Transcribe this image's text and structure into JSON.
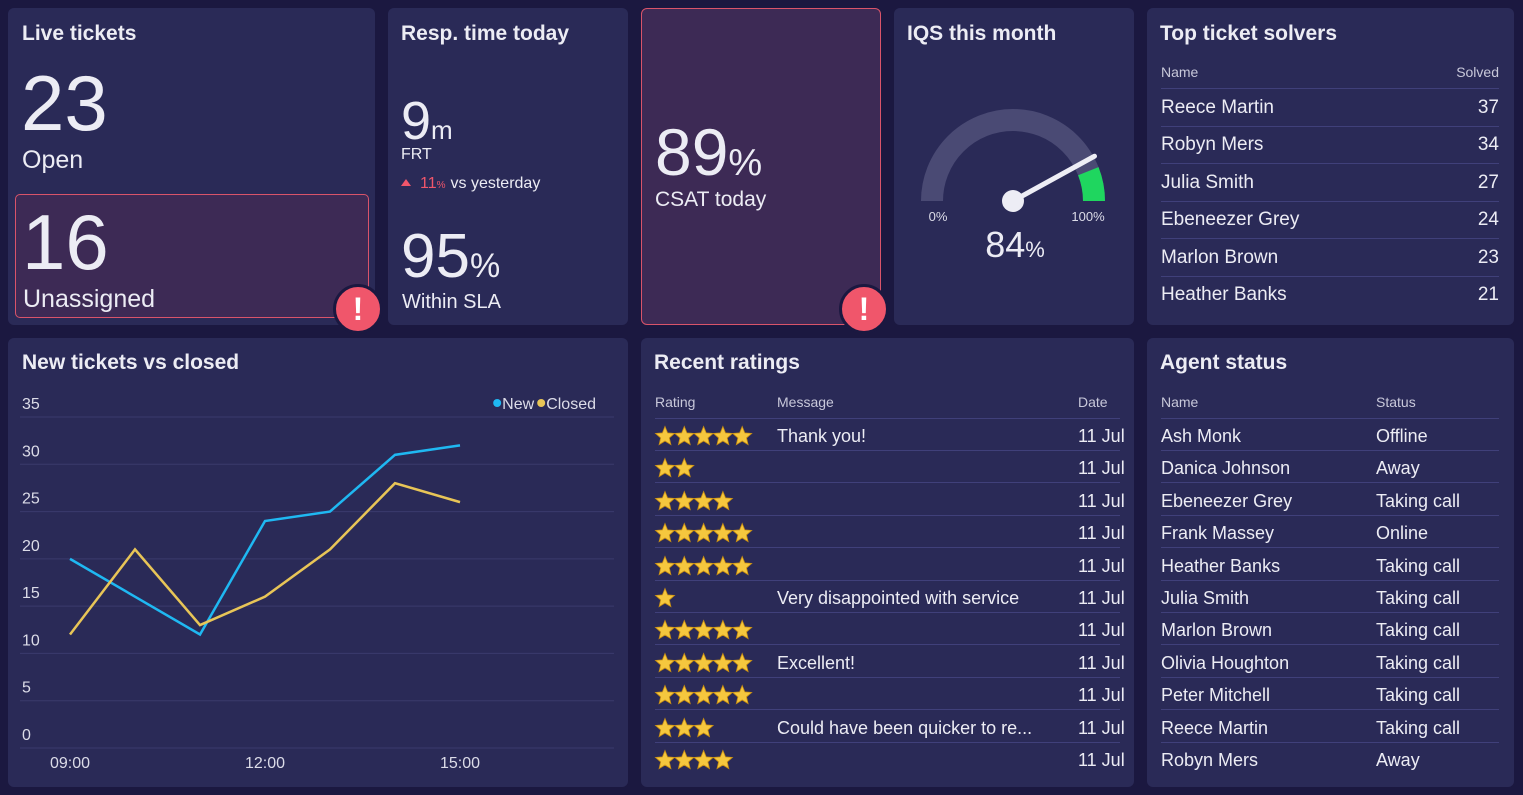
{
  "live_tickets": {
    "title": "Live tickets",
    "open": {
      "value": 23,
      "label": "Open"
    },
    "unassigned": {
      "value": 16,
      "label": "Unassigned"
    }
  },
  "response_time": {
    "title": "Resp. time today",
    "frt": {
      "value": 9,
      "unit": "m",
      "label": "FRT"
    },
    "change": {
      "value": 11,
      "unit": "%",
      "text": "vs yesterday"
    },
    "sla": {
      "value": 95,
      "unit": "%",
      "label": "Within SLA"
    }
  },
  "csat": {
    "value": 89,
    "unit": "%",
    "label": "CSAT today"
  },
  "solvers": {
    "title": "Top ticket solvers",
    "columns": [
      "Name",
      "Solved"
    ],
    "rows": [
      [
        "Reece Martin",
        37
      ],
      [
        "Robyn Mers",
        34
      ],
      [
        "Julia Smith",
        27
      ],
      [
        "Ebeneezer Grey",
        24
      ],
      [
        "Marlon Brown",
        23
      ],
      [
        "Heather Banks",
        21
      ]
    ]
  },
  "ratings": {
    "title": "Recent ratings",
    "columns": [
      "Rating",
      "Message",
      "Date"
    ],
    "rows": [
      [
        5,
        "Thank you!",
        "11 Jul"
      ],
      [
        2,
        null,
        "11 Jul"
      ],
      [
        4,
        null,
        "11 Jul"
      ],
      [
        5,
        null,
        "11 Jul"
      ],
      [
        5,
        null,
        "11 Jul"
      ],
      [
        1,
        "Very disappointed with service",
        "11 Jul"
      ],
      [
        5,
        null,
        "11 Jul"
      ],
      [
        5,
        "Excellent!",
        "11 Jul"
      ],
      [
        5,
        null,
        "11 Jul"
      ],
      [
        3,
        "Could have been quicker to re...",
        "11 Jul"
      ],
      [
        4,
        null,
        "11 Jul"
      ]
    ]
  },
  "agents": {
    "title": "Agent status",
    "columns": [
      "Name",
      "Status"
    ],
    "rows": [
      [
        "Ash Monk",
        "Offline"
      ],
      [
        "Danica Johnson",
        "Away"
      ],
      [
        "Ebeneezer Grey",
        "Taking call"
      ],
      [
        "Frank Massey",
        "Online"
      ],
      [
        "Heather Banks",
        "Taking call"
      ],
      [
        "Julia Smith",
        "Taking call"
      ],
      [
        "Marlon Brown",
        "Taking call"
      ],
      [
        "Olivia Houghton",
        "Taking call"
      ],
      [
        "Peter Mitchell",
        "Taking call"
      ],
      [
        "Reece Martin",
        "Taking call"
      ],
      [
        "Robyn Mers",
        "Away"
      ]
    ]
  },
  "chart_data": [
    {
      "type": "line",
      "title": "New tickets vs closed",
      "categories": [
        "09:00",
        null,
        null,
        "12:00",
        null,
        null,
        "15:00"
      ],
      "series": [
        {
          "name": "New",
          "color": "#1fb8f2",
          "values": [
            20,
            16,
            12,
            24,
            25,
            31,
            32
          ]
        },
        {
          "name": "Closed",
          "color": "#e8c557",
          "values": [
            12,
            21,
            13,
            16,
            21,
            28,
            26
          ]
        }
      ],
      "ylim": [
        0,
        35
      ],
      "yticks": [
        0,
        5,
        10,
        15,
        20,
        25,
        30,
        35
      ],
      "grid": true,
      "legend": "top-right"
    },
    {
      "type": "gauge",
      "title": "IQS this month",
      "value": 84,
      "unit": "%",
      "xlim": [
        0,
        100
      ],
      "xticks": [
        {
          "value": 0,
          "label": "0%"
        },
        {
          "value": 100,
          "label": "100%"
        }
      ],
      "color": "#4a4a74",
      "bands": [
        {
          "from": 88,
          "to": 100,
          "color": "#1fd65f"
        }
      ]
    }
  ]
}
